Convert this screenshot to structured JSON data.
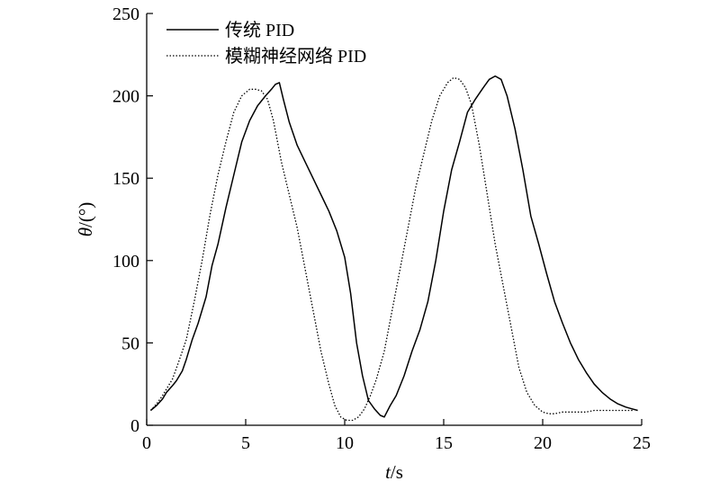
{
  "chart_data": {
    "type": "line",
    "xlabel": {
      "var": "t",
      "unit": "/s"
    },
    "ylabel": {
      "var": "θ",
      "unit": "/(°)"
    },
    "xlim": [
      0,
      25
    ],
    "ylim": [
      0,
      250
    ],
    "xticks": [
      "0",
      "5",
      "10",
      "15",
      "20",
      "25"
    ],
    "yticks": [
      "0",
      "50",
      "100",
      "150",
      "200",
      "250"
    ],
    "grid": false,
    "legend": "top-left",
    "series": [
      {
        "name": "传统 PID",
        "style": "solid",
        "color": "#000000",
        "x": [
          0.2,
          0.5,
          0.8,
          1.0,
          1.3,
          1.5,
          1.8,
          2.0,
          2.3,
          2.6,
          3.0,
          3.3,
          3.6,
          4.0,
          4.4,
          4.8,
          5.2,
          5.6,
          6.0,
          6.3,
          6.5,
          6.7,
          6.9,
          7.2,
          7.6,
          8.0,
          8.4,
          8.8,
          9.2,
          9.6,
          10.0,
          10.3,
          10.6,
          10.9,
          11.2,
          11.5,
          11.8,
          12.0,
          12.3,
          12.6,
          13.0,
          13.4,
          13.8,
          14.2,
          14.6,
          15.0,
          15.4,
          15.8,
          16.2,
          16.6,
          17.0,
          17.3,
          17.6,
          17.9,
          18.2,
          18.6,
          19.0,
          19.4,
          19.8,
          20.2,
          20.6,
          21.0,
          21.4,
          21.8,
          22.2,
          22.6,
          23.0,
          23.4,
          23.8,
          24.2,
          24.5,
          24.8
        ],
        "y": [
          9,
          12,
          16,
          20,
          24,
          27,
          33,
          40,
          52,
          62,
          78,
          97,
          110,
          132,
          152,
          172,
          185,
          194,
          200,
          204,
          207,
          208,
          198,
          184,
          170,
          160,
          150,
          140,
          130,
          118,
          102,
          80,
          50,
          30,
          15,
          10,
          6,
          5,
          12,
          18,
          30,
          45,
          58,
          75,
          100,
          130,
          155,
          172,
          190,
          198,
          205,
          210,
          212,
          210,
          200,
          180,
          155,
          127,
          110,
          92,
          75,
          62,
          50,
          40,
          32,
          25,
          20,
          16,
          13,
          11,
          10,
          9
        ]
      },
      {
        "name": "模糊神经网络 PID",
        "style": "dotted",
        "color": "#000000",
        "x": [
          0.2,
          0.5,
          0.8,
          1.0,
          1.3,
          1.6,
          2.0,
          2.4,
          2.8,
          3.2,
          3.6,
          4.0,
          4.4,
          4.8,
          5.2,
          5.5,
          5.8,
          6.1,
          6.4,
          6.8,
          7.2,
          7.6,
          8.0,
          8.4,
          8.8,
          9.2,
          9.5,
          9.8,
          10.1,
          10.4,
          10.7,
          11.0,
          11.3,
          11.6,
          12.0,
          12.4,
          12.8,
          13.2,
          13.6,
          14.0,
          14.4,
          14.8,
          15.2,
          15.5,
          15.8,
          16.1,
          16.4,
          16.8,
          17.2,
          17.6,
          18.0,
          18.4,
          18.8,
          19.2,
          19.6,
          20.0,
          20.3,
          20.6,
          21.0,
          21.4,
          21.8,
          22.2,
          22.6,
          23.0,
          23.4,
          23.8,
          24.2,
          24.6
        ],
        "y": [
          9,
          13,
          18,
          22,
          28,
          38,
          52,
          75,
          100,
          128,
          152,
          172,
          190,
          200,
          204,
          204,
          203,
          198,
          185,
          160,
          140,
          120,
          95,
          70,
          45,
          25,
          12,
          5,
          3,
          3,
          5,
          10,
          18,
          28,
          45,
          70,
          95,
          120,
          145,
          165,
          185,
          200,
          208,
          211,
          210,
          205,
          195,
          170,
          140,
          110,
          85,
          60,
          35,
          20,
          12,
          8,
          7,
          7,
          8,
          8,
          8,
          8,
          9,
          9,
          9,
          9,
          9,
          9
        ]
      }
    ]
  }
}
